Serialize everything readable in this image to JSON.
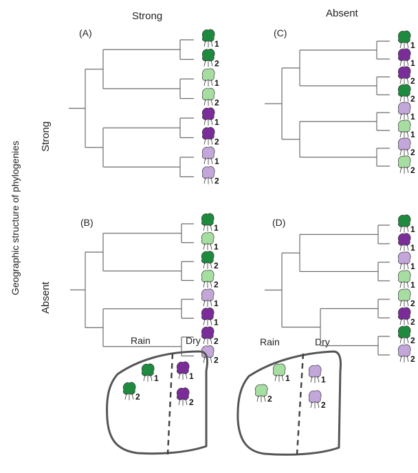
{
  "col_headers": [
    "Strong",
    "Absent"
  ],
  "row_labels": [
    "Strong",
    "Absent"
  ],
  "y_axis_title": "Geographic structure of phylogenies",
  "colors": {
    "dark_green": "#1e8a3e",
    "light_green": "#a6dea2",
    "dark_purple": "#7a2d99",
    "light_purple": "#c3a6da"
  },
  "panels": [
    {
      "letter": "(A)",
      "topology": "balanced",
      "leaves": [
        {
          "color": "dark_green",
          "site": "1"
        },
        {
          "color": "dark_green",
          "site": "2"
        },
        {
          "color": "light_green",
          "site": "1"
        },
        {
          "color": "light_green",
          "site": "2"
        },
        {
          "color": "dark_purple",
          "site": "1"
        },
        {
          "color": "dark_purple",
          "site": "2"
        },
        {
          "color": "light_purple",
          "site": "1"
        },
        {
          "color": "light_purple",
          "site": "2"
        }
      ]
    },
    {
      "letter": "(C)",
      "topology": "balanced",
      "leaves": [
        {
          "color": "dark_green",
          "site": "1"
        },
        {
          "color": "dark_purple",
          "site": "1"
        },
        {
          "color": "dark_purple",
          "site": "2"
        },
        {
          "color": "dark_green",
          "site": "2"
        },
        {
          "color": "light_purple",
          "site": "1"
        },
        {
          "color": "light_green",
          "site": "1"
        },
        {
          "color": "light_purple",
          "site": "2"
        },
        {
          "color": "light_green",
          "site": "2"
        }
      ]
    },
    {
      "letter": "(B)",
      "topology": "balanced",
      "leaves": [
        {
          "color": "dark_green",
          "site": "1"
        },
        {
          "color": "light_green",
          "site": "1"
        },
        {
          "color": "dark_green",
          "site": "2"
        },
        {
          "color": "light_green",
          "site": "2"
        },
        {
          "color": "light_purple",
          "site": "1"
        },
        {
          "color": "dark_purple",
          "site": "1"
        },
        {
          "color": "dark_purple",
          "site": "2"
        },
        {
          "color": "light_purple",
          "site": "2"
        }
      ]
    },
    {
      "letter": "(D)",
      "topology": "ladder",
      "leaves": [
        {
          "color": "dark_green",
          "site": "1"
        },
        {
          "color": "dark_purple",
          "site": "1"
        },
        {
          "color": "light_purple",
          "site": "1"
        },
        {
          "color": "light_green",
          "site": "1"
        },
        {
          "color": "light_green",
          "site": "2"
        },
        {
          "color": "dark_purple",
          "site": "2"
        },
        {
          "color": "dark_green",
          "site": "2"
        },
        {
          "color": "light_purple",
          "site": "2"
        }
      ]
    }
  ],
  "maps": [
    {
      "left_label": "Rain",
      "right_label": "Dry",
      "left_trees": [
        {
          "color": "dark_green",
          "site": "1"
        },
        {
          "color": "dark_green",
          "site": "2"
        }
      ],
      "right_trees": [
        {
          "color": "dark_purple",
          "site": "1"
        },
        {
          "color": "dark_purple",
          "site": "2"
        }
      ]
    },
    {
      "left_label": "Rain",
      "right_label": "Dry",
      "left_trees": [
        {
          "color": "light_green",
          "site": "1"
        },
        {
          "color": "light_green",
          "site": "2"
        }
      ],
      "right_trees": [
        {
          "color": "light_purple",
          "site": "1"
        },
        {
          "color": "light_purple",
          "site": "2"
        }
      ]
    }
  ]
}
